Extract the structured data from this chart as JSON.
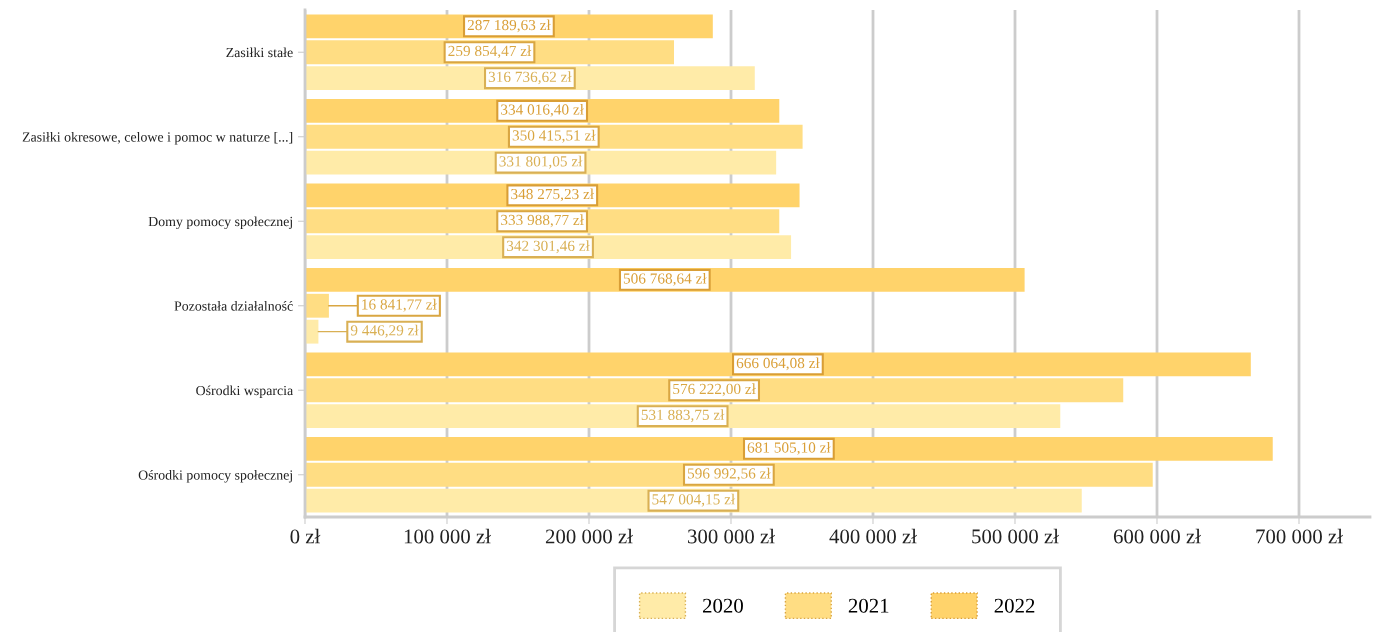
{
  "chart_data": {
    "type": "bar",
    "orientation": "horizontal",
    "categories": [
      "Zasiłki stałe",
      "Zasiłki okresowe, celowe i pomoc w naturze [...]",
      "Domy pomocy społecznej",
      "Pozostała działalność",
      "Ośrodki wsparcia",
      "Ośrodki pomocy społecznej"
    ],
    "series": [
      {
        "name": "2020",
        "color": "#ffeba8",
        "values": [
          316736.62,
          331801.05,
          342301.46,
          9446.29,
          531883.75,
          547004.15
        ],
        "value_labels": [
          "316 736,62 zł",
          "331 801,05 zł",
          "342 301,46 zł",
          "9 446,29 zł",
          "531 883,75 zł",
          "547 004,15 zł"
        ]
      },
      {
        "name": "2021",
        "color": "#ffdd83",
        "values": [
          259854.47,
          350415.51,
          333988.77,
          16841.77,
          576222.0,
          596992.56
        ],
        "value_labels": [
          "259 854,47 zł",
          "350 415,51 zł",
          "333 988,77 zł",
          "16 841,77 zł",
          "576 222,00 zł",
          "596 992,56 zł"
        ]
      },
      {
        "name": "2022",
        "color": "#ffd36b",
        "values": [
          287189.63,
          334016.4,
          348275.23,
          506768.64,
          666064.08,
          681505.1
        ],
        "value_labels": [
          "287 189,63 zł",
          "334 016,40 zł",
          "348 275,23 zł",
          "506 768,64 zł",
          "666 064,08 zł",
          "681 505,10 zł"
        ]
      }
    ],
    "xlim": [
      0,
      750000
    ],
    "xticks": [
      {
        "value": 0,
        "label": "0 zł"
      },
      {
        "value": 100000,
        "label": "100 000 zł"
      },
      {
        "value": 200000,
        "label": "200 000 zł"
      },
      {
        "value": 300000,
        "label": "300 000 zł"
      },
      {
        "value": 400000,
        "label": "400 000 zł"
      },
      {
        "value": 500000,
        "label": "500 000 zł"
      },
      {
        "value": 600000,
        "label": "600 000 zł"
      },
      {
        "value": 700000,
        "label": "700 000 zł"
      }
    ],
    "grid": "x",
    "legend": "bottom"
  }
}
